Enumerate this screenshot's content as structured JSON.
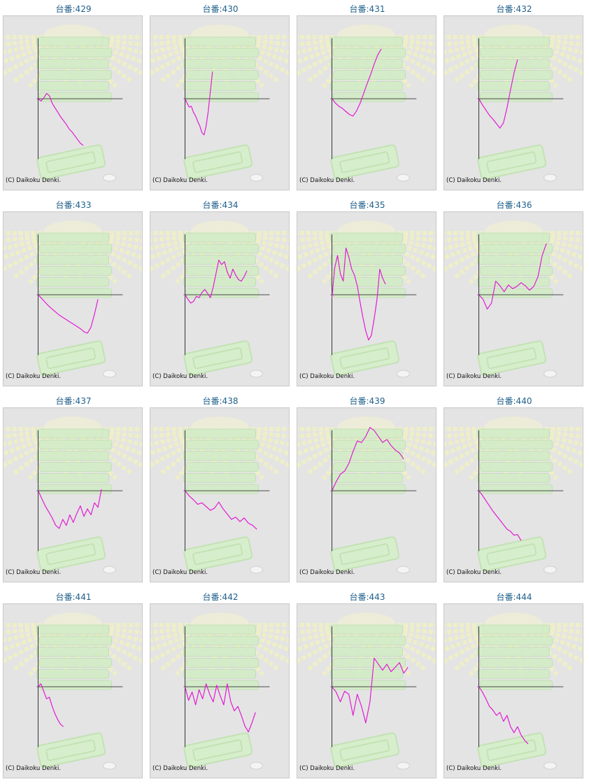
{
  "machine_prefix": "台番:",
  "copyright": "(C) Daikoku Denki.",
  "colors": {
    "line": "#e11bd3",
    "axis": "#333333",
    "panel_bg": "#e4e4e4",
    "title": "#1f5f8a"
  },
  "chart_data": [
    {
      "type": "line",
      "title": "429",
      "x": [
        0,
        4,
        8,
        12,
        16,
        20,
        24,
        28,
        32,
        36,
        40,
        44,
        48,
        52,
        56,
        60,
        64
      ],
      "values": [
        0,
        -0.15,
        0.05,
        0.35,
        0.2,
        -0.3,
        -0.6,
        -0.9,
        -1.2,
        -1.45,
        -1.7,
        -2.0,
        -2.2,
        -2.45,
        -2.7,
        -2.95,
        -3.1
      ]
    },
    {
      "type": "line",
      "title": "430",
      "x": [
        0,
        3,
        6,
        9,
        12,
        15,
        18,
        21,
        24,
        27,
        30,
        33,
        36,
        39
      ],
      "values": [
        0,
        -0.3,
        -0.55,
        -0.5,
        -0.9,
        -1.15,
        -1.5,
        -1.8,
        -2.25,
        -2.4,
        -1.8,
        -0.8,
        0.5,
        1.8
      ]
    },
    {
      "type": "line",
      "title": "431",
      "x": [
        0,
        5,
        10,
        15,
        20,
        25,
        30,
        35,
        40,
        45,
        50,
        55,
        60,
        65,
        70
      ],
      "values": [
        0,
        -0.3,
        -0.5,
        -0.65,
        -0.85,
        -1.05,
        -1.15,
        -0.8,
        -0.3,
        0.35,
        1.0,
        1.6,
        2.3,
        2.9,
        3.3
      ]
    },
    {
      "type": "line",
      "title": "432",
      "x": [
        0,
        5,
        10,
        15,
        20,
        25,
        30,
        35,
        40,
        45,
        50,
        55
      ],
      "values": [
        0,
        -0.4,
        -0.75,
        -1.1,
        -1.35,
        -1.65,
        -1.95,
        -1.6,
        -0.6,
        0.6,
        1.7,
        2.6
      ]
    },
    {
      "type": "line",
      "title": "433",
      "x": [
        0,
        5,
        10,
        15,
        20,
        25,
        30,
        35,
        40,
        45,
        50,
        55,
        60,
        65,
        70,
        75,
        80,
        85
      ],
      "values": [
        0,
        -0.25,
        -0.5,
        -0.75,
        -0.95,
        -1.15,
        -1.35,
        -1.5,
        -1.65,
        -1.8,
        -1.95,
        -2.1,
        -2.25,
        -2.45,
        -2.55,
        -2.15,
        -1.3,
        -0.3
      ]
    },
    {
      "type": "line",
      "title": "434",
      "x": [
        0,
        4,
        8,
        12,
        16,
        20,
        24,
        28,
        32,
        36,
        40,
        44,
        48,
        52,
        56,
        60,
        64,
        68,
        72,
        76,
        80,
        84,
        88
      ],
      "values": [
        0,
        -0.3,
        -0.55,
        -0.45,
        -0.1,
        -0.2,
        0.15,
        0.35,
        0.1,
        -0.2,
        0.5,
        1.4,
        2.3,
        2.0,
        2.2,
        1.5,
        1.1,
        1.7,
        1.3,
        1.0,
        0.9,
        1.2,
        1.6
      ]
    },
    {
      "type": "line",
      "title": "435",
      "x": [
        0,
        4,
        8,
        12,
        16,
        20,
        24,
        28,
        32,
        36,
        40,
        44,
        48,
        52,
        56,
        60,
        64,
        68,
        72,
        76
      ],
      "values": [
        -0.2,
        1.8,
        2.6,
        1.4,
        0.9,
        3.1,
        2.5,
        1.7,
        1.3,
        0.6,
        -0.5,
        -1.5,
        -2.4,
        -3.0,
        -2.7,
        -1.6,
        -0.3,
        1.7,
        1.1,
        0.7
      ]
    },
    {
      "type": "line",
      "title": "436",
      "x": [
        0,
        6,
        12,
        18,
        24,
        30,
        36,
        42,
        48,
        54,
        60,
        66,
        72,
        78,
        84,
        90,
        96
      ],
      "values": [
        0,
        -0.3,
        -0.95,
        -0.55,
        0.9,
        0.6,
        0.2,
        0.65,
        0.4,
        0.55,
        0.8,
        0.6,
        0.3,
        0.55,
        1.2,
        2.6,
        3.4
      ]
    },
    {
      "type": "line",
      "title": "437",
      "x": [
        0,
        5,
        10,
        15,
        20,
        25,
        30,
        35,
        40,
        45,
        50,
        55,
        60,
        65,
        70,
        75,
        80,
        85,
        90
      ],
      "values": [
        0,
        -0.5,
        -1.0,
        -1.4,
        -1.8,
        -2.3,
        -2.5,
        -1.9,
        -2.3,
        -1.6,
        -2.1,
        -1.5,
        -1.0,
        -1.7,
        -1.2,
        -1.6,
        -0.8,
        -1.1,
        0.1
      ]
    },
    {
      "type": "line",
      "title": "438",
      "x": [
        0,
        6,
        12,
        18,
        24,
        30,
        36,
        42,
        48,
        54,
        60,
        66,
        72,
        78,
        84,
        90,
        96,
        102
      ],
      "values": [
        0,
        -0.35,
        -0.6,
        -0.9,
        -0.8,
        -1.05,
        -1.3,
        -1.15,
        -0.75,
        -1.2,
        -1.55,
        -1.9,
        -1.75,
        -2.05,
        -1.8,
        -2.15,
        -2.3,
        -2.55
      ]
    },
    {
      "type": "line",
      "title": "439",
      "x": [
        0,
        6,
        12,
        18,
        24,
        30,
        36,
        42,
        48,
        54,
        60,
        66,
        72,
        78,
        84,
        90,
        96,
        102
      ],
      "values": [
        0,
        0.6,
        1.1,
        1.3,
        1.8,
        2.6,
        3.3,
        3.2,
        3.6,
        4.2,
        4.0,
        3.6,
        3.2,
        3.4,
        3.0,
        2.7,
        2.5,
        2.1
      ]
    },
    {
      "type": "line",
      "title": "440",
      "x": [
        0,
        5,
        10,
        15,
        20,
        25,
        30,
        35,
        40,
        45,
        50,
        55,
        60
      ],
      "values": [
        0,
        -0.3,
        -0.65,
        -1.0,
        -1.35,
        -1.65,
        -1.95,
        -2.25,
        -2.55,
        -2.7,
        -2.95,
        -2.9,
        -3.3
      ]
    },
    {
      "type": "line",
      "title": "441",
      "x": [
        0,
        4,
        8,
        12,
        16,
        20,
        24,
        28,
        32,
        36
      ],
      "values": [
        0,
        0.2,
        -0.3,
        -0.8,
        -0.7,
        -1.3,
        -1.8,
        -2.2,
        -2.5,
        -2.65
      ]
    },
    {
      "type": "line",
      "title": "442",
      "x": [
        0,
        5,
        10,
        15,
        20,
        25,
        30,
        35,
        40,
        45,
        50,
        55,
        60,
        65,
        70,
        75,
        80,
        85,
        90,
        95,
        100
      ],
      "values": [
        0,
        -0.9,
        -0.35,
        -1.2,
        -0.2,
        -0.8,
        0.2,
        -0.5,
        -1.0,
        0.1,
        -0.6,
        -1.2,
        0.2,
        -1.0,
        -1.6,
        -1.3,
        -1.9,
        -2.6,
        -3.0,
        -2.4,
        -1.7
      ]
    },
    {
      "type": "line",
      "title": "443",
      "x": [
        0,
        6,
        12,
        18,
        24,
        30,
        36,
        42,
        48,
        54,
        60,
        66,
        72,
        78,
        84,
        90,
        96,
        102,
        108
      ],
      "values": [
        0,
        -0.35,
        -1.0,
        -0.3,
        -0.5,
        -1.9,
        -0.5,
        -1.3,
        -2.4,
        -1.0,
        1.9,
        1.5,
        1.1,
        1.5,
        1.0,
        1.3,
        1.6,
        0.9,
        1.3
      ]
    },
    {
      "type": "line",
      "title": "444",
      "x": [
        0,
        5,
        10,
        15,
        20,
        25,
        30,
        35,
        40,
        45,
        50,
        55,
        60,
        65,
        70
      ],
      "values": [
        0,
        -0.35,
        -0.8,
        -1.3,
        -1.55,
        -1.9,
        -1.7,
        -2.3,
        -1.9,
        -2.65,
        -3.05,
        -2.65,
        -3.2,
        -3.55,
        -3.8
      ]
    }
  ]
}
